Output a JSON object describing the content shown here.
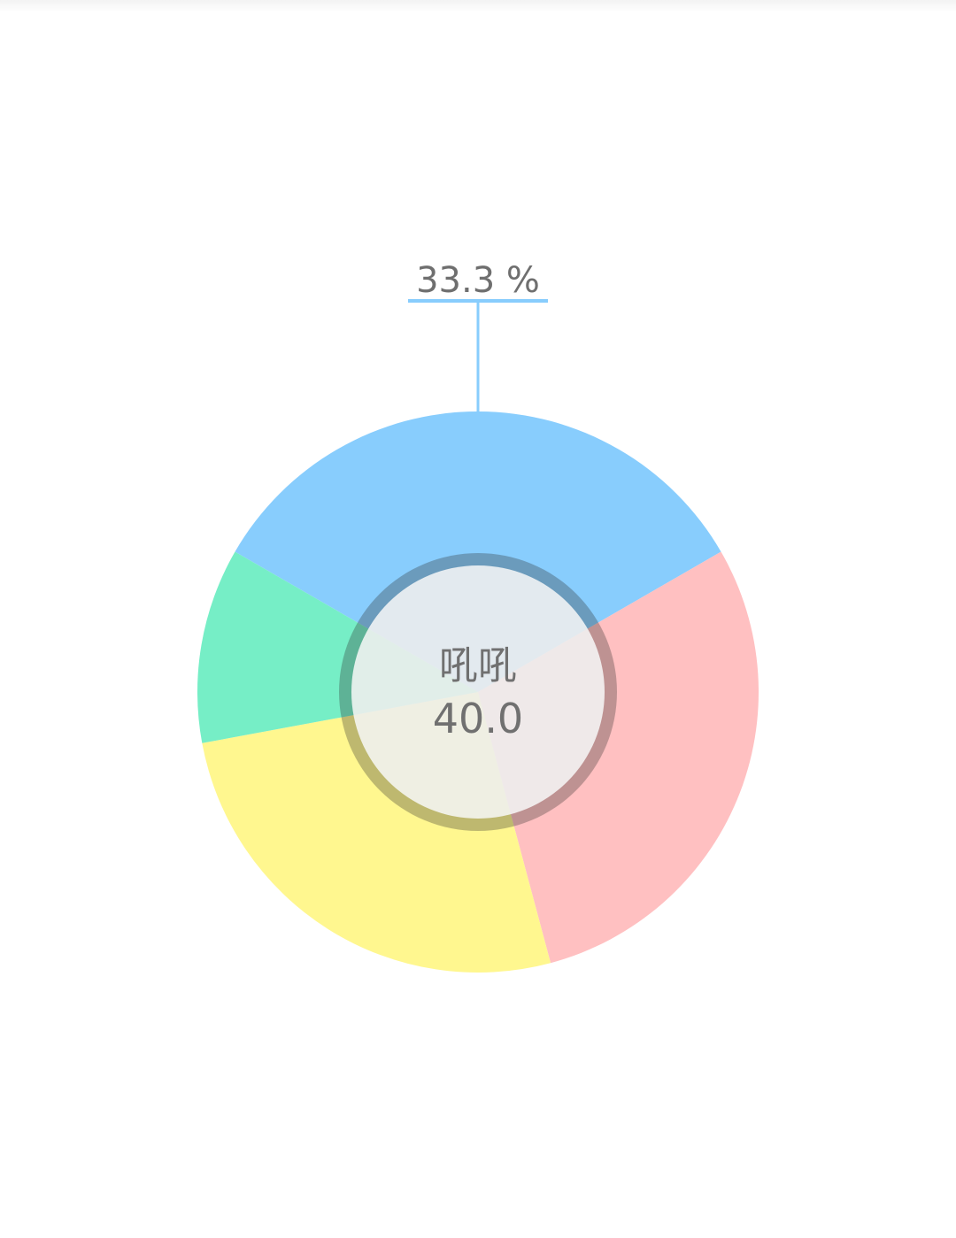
{
  "chart_data": {
    "type": "pie",
    "variant": "donut",
    "slices": [
      {
        "label": "吼吼",
        "value": 40.0,
        "percent_label": "33.3 %",
        "color": "#88CDFD",
        "selected": true
      },
      {
        "label": "",
        "value": 35.0,
        "color": "#FFC0C1"
      },
      {
        "label": "",
        "value": 31.5,
        "color": "#FFF78F"
      },
      {
        "label": "",
        "value": 13.5,
        "color": "#76EEC6"
      }
    ],
    "center": {
      "name": "吼吼",
      "value": "40.0"
    },
    "selected_index": 0,
    "legend": "none"
  }
}
